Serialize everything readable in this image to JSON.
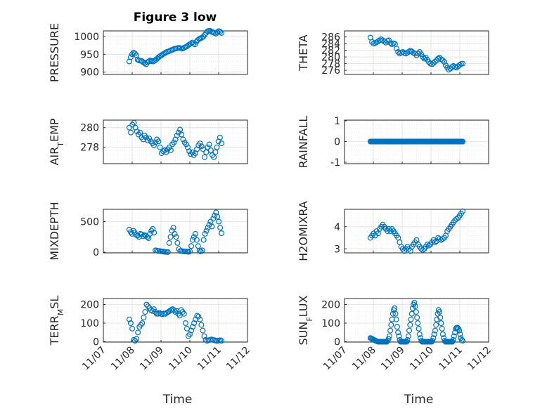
{
  "figure": {
    "title": "Figure 3 low",
    "marker_color": "#0072BD",
    "grid": true,
    "xlabel": "Time",
    "x_ticks": [
      "11/07",
      "11/08",
      "11/09",
      "11/10",
      "11/11",
      "11/12"
    ]
  },
  "chart_data": [
    {
      "type": "scatter",
      "name": "pressure",
      "title": "Figure 3 low",
      "ylabel": "PRESSURE",
      "ylim": [
        900,
        1020
      ],
      "yticks": [
        "900",
        "950",
        "1000"
      ],
      "x_range": [
        0.9,
        4.1
      ],
      "y": [
        930,
        942,
        950,
        955,
        952,
        948,
        935,
        933,
        932,
        931,
        928,
        925,
        922,
        928,
        930,
        933,
        931,
        930,
        932,
        935,
        938,
        942,
        945,
        947,
        950,
        952,
        955,
        957,
        958,
        960,
        962,
        963,
        965,
        966,
        967,
        968,
        968,
        967,
        966,
        968,
        970,
        972,
        975,
        978,
        980,
        983,
        980,
        978,
        985,
        990,
        993,
        995,
        997,
        1000,
        1005,
        1010,
        1015,
        1018,
        1016,
        1013,
        1012,
        1010,
        1008,
        1012,
        1015,
        1013,
        1010
      ]
    },
    {
      "type": "scatter",
      "name": "theta",
      "title": "",
      "ylabel": "THETA",
      "ylim": [
        275.5,
        286
      ],
      "yticks": [
        "276",
        "278",
        "280",
        "282",
        "284",
        "286"
      ],
      "x_range": [
        0.9,
        4.1
      ],
      "y": [
        285.8,
        284.5,
        284.0,
        284.2,
        284.4,
        284.7,
        285.0,
        285.3,
        285.0,
        284.6,
        284.3,
        284.8,
        285.0,
        284.2,
        283.8,
        284.1,
        283.9,
        282.5,
        281.5,
        281.0,
        281.3,
        281.5,
        281.2,
        281.0,
        281.3,
        281.6,
        281.9,
        281.6,
        281.2,
        281.0,
        280.5,
        281.0,
        281.5,
        280.8,
        280.0,
        279.5,
        279.8,
        279.2,
        278.5,
        278.0,
        277.8,
        278.2,
        278.6,
        279.0,
        279.5,
        279.8,
        279.3,
        279.0,
        278.5,
        277.5,
        276.8,
        276.2,
        276.5,
        277.0,
        277.3,
        277.0,
        276.8,
        277.2,
        277.6,
        277.9,
        278.0
      ]
    },
    {
      "type": "scatter",
      "name": "air-temp",
      "title": "",
      "ylabel": "AIR_TEMP",
      "ylim": [
        276.4,
        280.8
      ],
      "yticks": [
        "278",
        "280"
      ],
      "x_range": [
        0.9,
        4.1
      ],
      "y": [
        280.0,
        279.5,
        280.3,
        280.5,
        280.0,
        279.6,
        279.3,
        279.5,
        279.0,
        278.8,
        279.2,
        279.0,
        278.7,
        278.9,
        278.6,
        278.4,
        278.2,
        278.5,
        278.8,
        278.6,
        278.0,
        277.4,
        277.6,
        277.7,
        277.5,
        277.8,
        278.0,
        277.7,
        278.3,
        278.5,
        278.8,
        279.2,
        279.5,
        279.8,
        279.3,
        278.8,
        278.5,
        278.3,
        278.0,
        277.6,
        277.3,
        277.5,
        277.2,
        277.4,
        277.8,
        278.2,
        278.4,
        278.1,
        277.8,
        277.0,
        277.5,
        278.0,
        278.3,
        277.7,
        277.2,
        277.0,
        277.5,
        278.0,
        278.6,
        279.0,
        278.4
      ]
    },
    {
      "type": "scatter",
      "name": "rainfall",
      "title": "",
      "ylabel": "RAINFALL",
      "ylim": [
        -1,
        1
      ],
      "yticks": [
        "-1",
        "0",
        "1"
      ],
      "x_range": [
        0.9,
        4.1
      ],
      "y": [
        0,
        0,
        0,
        0,
        0,
        0,
        0,
        0,
        0,
        0,
        0,
        0,
        0,
        0,
        0,
        0,
        0,
        0,
        0,
        0,
        0,
        0,
        0,
        0,
        0,
        0,
        0,
        0,
        0,
        0,
        0,
        0,
        0,
        0,
        0,
        0,
        0,
        0,
        0,
        0,
        0,
        0,
        0,
        0,
        0,
        0,
        0,
        0,
        0,
        0,
        0,
        0,
        0,
        0,
        0,
        0,
        0,
        0,
        0,
        0,
        0,
        0,
        0,
        0,
        0,
        0,
        0,
        0,
        0,
        0,
        0,
        0,
        0,
        0,
        0,
        0,
        0,
        0,
        0,
        0,
        0,
        0,
        0,
        0,
        0,
        0,
        0,
        0,
        0,
        0,
        0,
        0,
        0,
        0,
        0,
        0,
        0,
        0,
        0,
        0,
        0,
        0,
        0,
        0,
        0,
        0,
        0,
        0,
        0,
        0,
        0,
        0,
        0,
        0,
        0,
        0,
        0,
        0,
        0,
        0
      ]
    },
    {
      "type": "scatter",
      "name": "mixdepth",
      "title": "",
      "ylabel": "MIXDEPTH",
      "ylim": [
        0,
        700
      ],
      "yticks": [
        "0",
        "500"
      ],
      "x_range": [
        0.9,
        4.1
      ],
      "y": [
        370,
        330,
        300,
        350,
        320,
        280,
        270,
        250,
        300,
        290,
        260,
        280,
        270,
        250,
        230,
        300,
        350,
        380,
        320,
        30,
        25,
        20,
        18,
        15,
        10,
        8,
        5,
        3,
        2,
        150,
        250,
        350,
        400,
        300,
        250,
        150,
        50,
        20,
        18,
        15,
        12,
        10,
        8,
        5,
        15,
        100,
        200,
        250,
        300,
        200,
        100,
        20,
        10,
        30,
        200,
        300,
        350,
        400,
        450,
        500,
        420,
        550,
        600,
        650,
        580,
        500,
        400,
        310
      ]
    },
    {
      "type": "scatter",
      "name": "h2omixra",
      "title": "",
      "ylabel": "H2OMIXRA",
      "ylim": [
        2.8,
        4.8
      ],
      "yticks": [
        "3",
        "4"
      ],
      "x_range": [
        0.9,
        4.1
      ],
      "y": [
        3.5,
        3.6,
        3.7,
        3.6,
        3.8,
        3.7,
        3.9,
        4.0,
        4.1,
        4.0,
        3.9,
        3.8,
        3.9,
        3.8,
        3.9,
        3.8,
        3.7,
        3.6,
        3.5,
        3.3,
        3.1,
        3.0,
        2.9,
        3.0,
        3.1,
        3.0,
        2.9,
        3.1,
        3.2,
        3.3,
        3.4,
        3.2,
        3.1,
        3.0,
        2.95,
        3.0,
        3.1,
        3.2,
        3.15,
        3.2,
        3.3,
        3.4,
        3.3,
        3.35,
        3.5,
        3.45,
        3.4,
        3.45,
        3.5,
        3.6,
        3.8,
        3.9,
        4.0,
        4.1,
        4.2,
        4.3,
        4.35,
        4.4,
        4.5,
        4.6,
        4.7
      ]
    },
    {
      "type": "scatter",
      "name": "terr-msl",
      "title": "",
      "ylabel": "TERR_MSL",
      "ylim": [
        0,
        215
      ],
      "yticks": [
        "0",
        "100",
        "200"
      ],
      "x_range": [
        0.9,
        4.1
      ],
      "y": [
        120,
        100,
        70,
        10,
        5,
        15,
        50,
        80,
        90,
        100,
        130,
        160,
        200,
        190,
        180,
        170,
        165,
        175,
        160,
        150,
        150,
        155,
        150,
        148,
        152,
        150,
        155,
        160,
        165,
        170,
        175,
        170,
        160,
        165,
        150,
        140,
        170,
        160,
        150,
        100,
        70,
        30,
        40,
        60,
        80,
        100,
        120,
        140,
        135,
        120,
        90,
        60,
        30,
        10,
        5,
        8,
        10,
        12,
        10,
        8,
        6,
        4,
        6,
        8,
        5
      ]
    },
    {
      "type": "scatter",
      "name": "sun-flux",
      "title": "",
      "ylabel": "SUN_FLUX",
      "ylim": [
        0,
        215
      ],
      "yticks": [
        "0",
        "100",
        "200"
      ],
      "x_range": [
        0.9,
        4.1
      ],
      "y": [
        20,
        18,
        15,
        12,
        10,
        8,
        5,
        3,
        2,
        0,
        0,
        0,
        0,
        0,
        0,
        0,
        0,
        0,
        0,
        0,
        5,
        15,
        30,
        60,
        90,
        120,
        150,
        170,
        180,
        150,
        120,
        80,
        50,
        30,
        10,
        0,
        0,
        0,
        0,
        0,
        0,
        0,
        0,
        10,
        30,
        60,
        90,
        120,
        150,
        180,
        200,
        210,
        190,
        160,
        130,
        100,
        70,
        40,
        20,
        5,
        0,
        0,
        0,
        0,
        0,
        0,
        0,
        0,
        0,
        0,
        0,
        0,
        5,
        20,
        40,
        60,
        90,
        120,
        150,
        170,
        160,
        130,
        100,
        70,
        40,
        20,
        5,
        0,
        0,
        0,
        0,
        0,
        0,
        0,
        0,
        0,
        10,
        30,
        50,
        70,
        75,
        75,
        70,
        60,
        40,
        20,
        10,
        5
      ]
    }
  ]
}
